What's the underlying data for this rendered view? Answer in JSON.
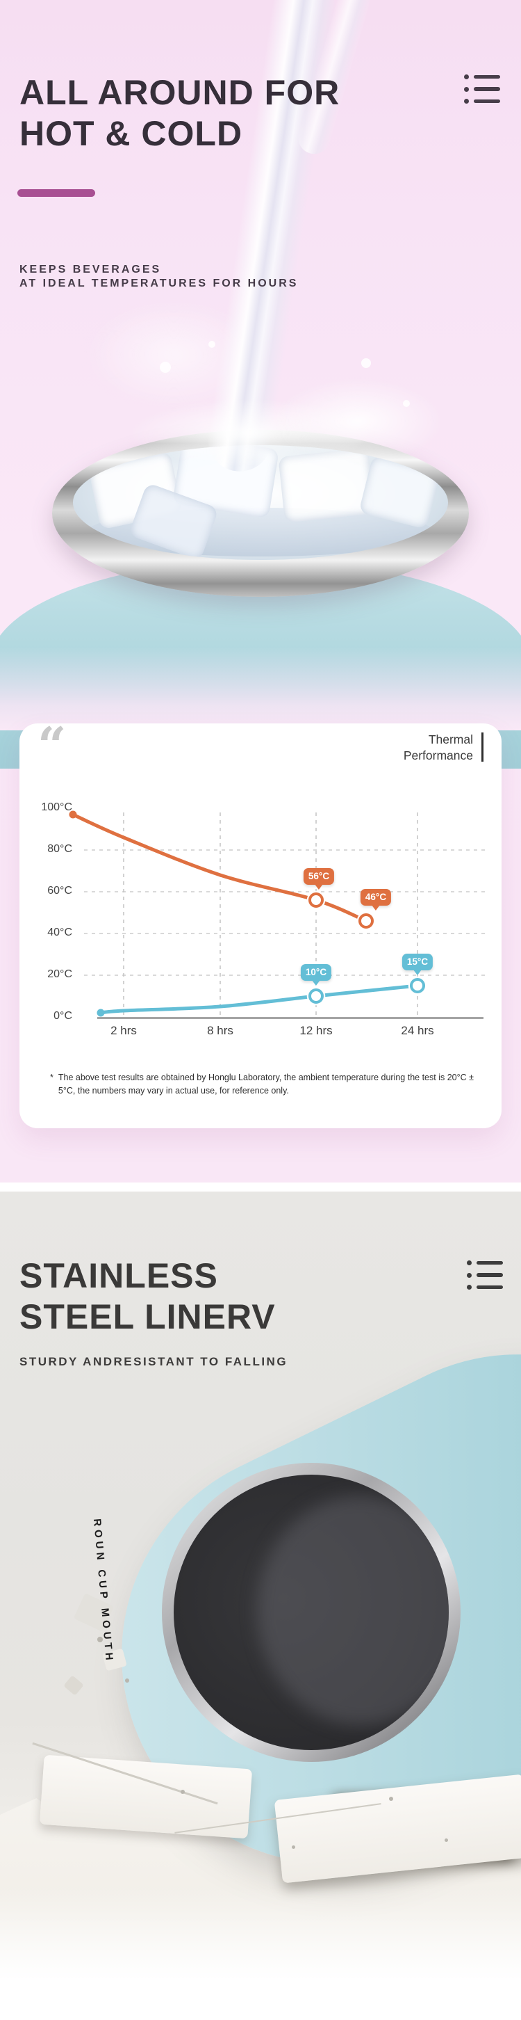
{
  "page": {
    "hot_cold_section": {
      "title_lines": [
        "ALL AROUND FOR",
        "HOT & COLD"
      ],
      "subtitle_lines": [
        "KEEPS BEVERAGES",
        "AT IDEAL TEMPERATURES FOR HOURS"
      ]
    },
    "thermal_card": {
      "quote_glyph": "“",
      "title_lines": [
        "Thermal",
        "Performance"
      ],
      "footnote_marker": "*",
      "footnote_text": "The above test results are obtained by Honglu Laboratory, the ambient temperature during the test is 20°C ± 5°C, the numbers may vary in actual use, for reference only."
    },
    "stainless_section": {
      "title_lines": [
        "STAINLESS",
        "STEEL LINERV"
      ],
      "subtitle": "STURDY ANDRESISTANT TO FALLING",
      "vertical_caption": "ROUN CUP MOUTH"
    }
  },
  "icons": {
    "top_right": "list-icon",
    "bottom_right": "list-icon",
    "card_left": "quote-icon"
  },
  "colors": {
    "pink_background": "#f8e3f5",
    "magenta_bar": "#a84f92",
    "heading_dark": "#362f3a",
    "card_background": "#ffffff",
    "hot_line": "#df7040",
    "cold_line": "#63bed6",
    "gray_background": "#e5e4e1",
    "bottle_blue": "#b4d9e0"
  },
  "chart_data": {
    "type": "line",
    "title": "Thermal Performance",
    "x_categories": [
      "2 hrs",
      "8 hrs",
      "12 hrs",
      "24 hrs"
    ],
    "x_hours": [
      2,
      8,
      12,
      24
    ],
    "y_tick_labels": [
      "100°C",
      "80°C",
      "60°C",
      "40°C",
      "20°C",
      "0°C"
    ],
    "ylim": [
      0,
      100
    ],
    "y_unit": "°C",
    "grid": "dashed",
    "legend": "none",
    "series": [
      {
        "name": "hot-water-temperature",
        "color": "#df7040",
        "points": [
          {
            "hour": 0,
            "temp": 97
          },
          {
            "hour": 2,
            "temp": 86
          },
          {
            "hour": 8,
            "temp": 68
          },
          {
            "hour": 12,
            "temp": 56,
            "badge": "56°C"
          },
          {
            "hour": 24,
            "temp": 46,
            "badge": "46°C"
          }
        ]
      },
      {
        "name": "cold-water-temperature",
        "color": "#63bed6",
        "points": [
          {
            "hour": 0,
            "temp": 2
          },
          {
            "hour": 2,
            "temp": 3
          },
          {
            "hour": 8,
            "temp": 5
          },
          {
            "hour": 12,
            "temp": 10,
            "badge": "10°C"
          },
          {
            "hour": 24,
            "temp": 15,
            "badge": "15°C"
          }
        ]
      }
    ],
    "footnote": "* The above test results are obtained by Honglu Laboratory, the ambient temperature during the test is 20°C ± 5°C, the numbers may vary in actual use, for reference only."
  }
}
